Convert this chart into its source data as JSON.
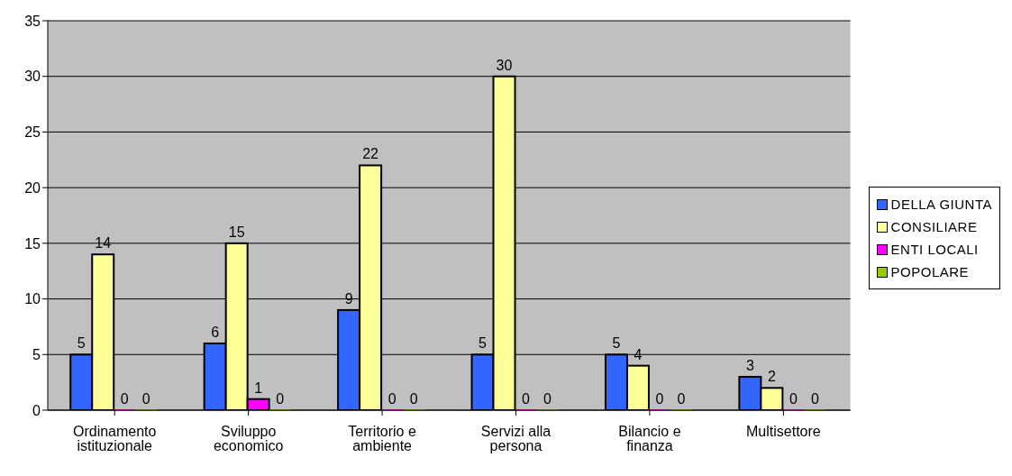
{
  "chart_data": {
    "type": "bar",
    "categories": [
      "Ordinamento istituzionale",
      "Sviluppo economico",
      "Territorio e ambiente",
      "Servizi alla persona",
      "Bilancio e finanza",
      "Multisettore"
    ],
    "series": [
      {
        "name": "DELLA GIUNTA",
        "color": "#3366ff",
        "values": [
          5,
          6,
          9,
          5,
          5,
          3
        ]
      },
      {
        "name": "CONSILIARE",
        "color": "#ffff99",
        "values": [
          14,
          15,
          22,
          30,
          4,
          2
        ]
      },
      {
        "name": "ENTI LOCALI",
        "color": "#ff00ff",
        "values": [
          0,
          1,
          0,
          0,
          0,
          0
        ]
      },
      {
        "name": "POPOLARE",
        "color": "#99cc00",
        "values": [
          0,
          0,
          0,
          0,
          0,
          0
        ]
      }
    ],
    "ylim": [
      0,
      35
    ],
    "yticks": [
      0,
      5,
      10,
      15,
      20,
      25,
      30,
      35
    ],
    "grid": "y",
    "legend": "right",
    "data_labels": true
  }
}
